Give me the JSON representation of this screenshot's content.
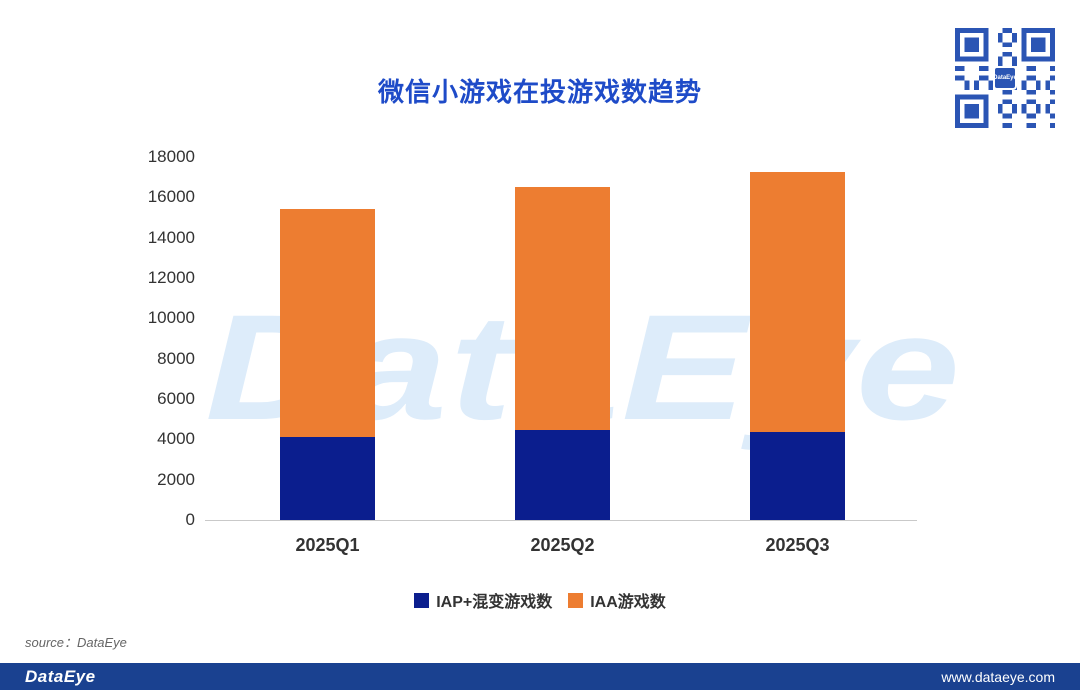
{
  "watermark": "DataEye",
  "source_note": "source：DataEye",
  "footer": {
    "logo": "DataEye",
    "url": "www.dataeye.com",
    "bg_color": "#1a4190"
  },
  "colors": {
    "title": "#1e4bc8",
    "iap_navy": "#0b1e8e",
    "iaa_orange": "#ed7d31",
    "qr_blue": "#2b55b4"
  },
  "qr": {
    "logo_text": "DataEye"
  },
  "chart_data": {
    "type": "bar",
    "stacked": true,
    "title": "微信小游戏在投游戏数趋势",
    "xlabel": "",
    "ylabel": "",
    "categories": [
      "2025Q1",
      "2025Q2",
      "2025Q3"
    ],
    "series": [
      {
        "name": "IAP+混变游戏数",
        "color": "#0b1e8e",
        "values": [
          4100,
          4450,
          4350
        ]
      },
      {
        "name": "IAA游戏数",
        "color": "#ed7d31",
        "values": [
          11300,
          12050,
          12900
        ]
      }
    ],
    "totals": [
      15400,
      16500,
      17250
    ],
    "ylim": [
      0,
      18000
    ],
    "yticks": [
      0,
      2000,
      4000,
      6000,
      8000,
      10000,
      12000,
      14000,
      16000,
      18000
    ],
    "grid": false,
    "legend_position": "bottom"
  }
}
